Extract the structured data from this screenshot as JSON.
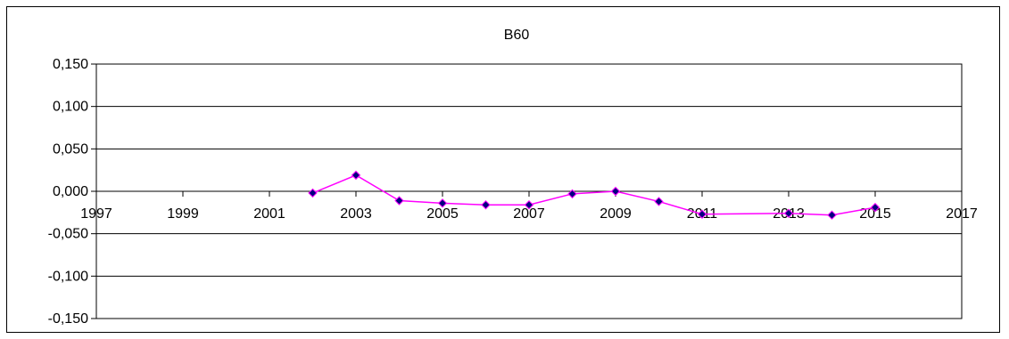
{
  "chart_data": {
    "type": "line",
    "title": "B60",
    "xlabel": "",
    "ylabel": "",
    "xlim": [
      1997,
      2017
    ],
    "ylim": [
      -0.15,
      0.15
    ],
    "x_ticks": [
      1997,
      1999,
      2001,
      2003,
      2005,
      2007,
      2009,
      2011,
      2013,
      2015,
      2017
    ],
    "x_tick_labels": [
      "1997",
      "1999",
      "2001",
      "2003",
      "2005",
      "2007",
      "2009",
      "2011",
      "2013",
      "2015",
      "2017"
    ],
    "y_ticks": [
      0.15,
      0.1,
      0.05,
      0.0,
      -0.05,
      -0.1,
      -0.15
    ],
    "y_tick_labels": [
      "0,150",
      "0,100",
      "0,050",
      "0,000",
      "-0,050",
      "-0,100",
      "-0,150"
    ],
    "grid": "horizontal",
    "legend": "none",
    "series": [
      {
        "x": [
          2002,
          2003,
          2004,
          2005,
          2006,
          2007,
          2008,
          2009,
          2010,
          2011,
          2013,
          2014,
          2015
        ],
        "y": [
          -0.002,
          0.019,
          -0.011,
          -0.014,
          -0.016,
          -0.016,
          -0.003,
          0.0,
          -0.012,
          -0.027,
          -0.026,
          -0.028,
          -0.019
        ],
        "line_color": "#ff00ff",
        "marker_color": "#000080"
      }
    ]
  }
}
